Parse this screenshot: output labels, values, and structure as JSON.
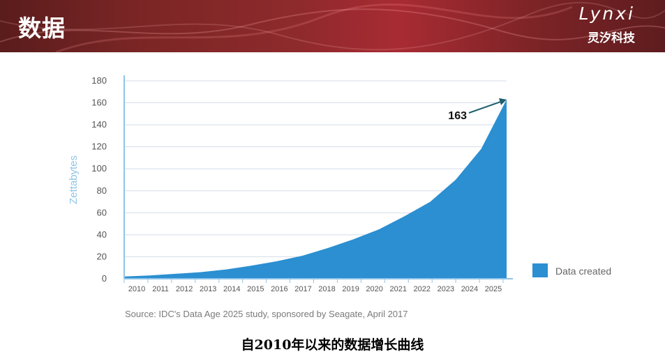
{
  "header": {
    "title": "数据",
    "logo_word": "Lynxi",
    "logo_sub": "灵汐科技"
  },
  "colors": {
    "banner": "#8e2a2c",
    "area_fill": "#2b8fd1",
    "grid": "#d4dee8",
    "axis": "#8fc4e8",
    "ylabel": "#8fc4e8",
    "tick_text": "#555555",
    "source_text": "#7a7a7a"
  },
  "chart_data": {
    "type": "area",
    "x": [
      "2010",
      "2011",
      "2012",
      "2013",
      "2014",
      "2015",
      "2016",
      "2017",
      "2018",
      "2019",
      "2020",
      "2021",
      "2022",
      "2023",
      "2024",
      "2025"
    ],
    "series": [
      {
        "name": "Data created",
        "values": [
          2,
          3,
          4.5,
          6,
          8.5,
          12,
          16,
          21,
          28,
          36,
          45,
          57,
          70,
          90,
          118,
          163
        ]
      }
    ],
    "ylabel": "Zettabytes",
    "xlabel": "",
    "ylim": [
      0,
      180
    ],
    "yticks": [
      0,
      20,
      40,
      60,
      80,
      100,
      120,
      140,
      160,
      180
    ],
    "grid": true,
    "legend": "right",
    "annotation": {
      "text": "163",
      "x": "2025",
      "y": 163
    },
    "source": "Source: IDC's Data Age 2025 study, sponsored by Seagate, April 2017"
  },
  "caption": "自2010年以来的数据增长曲线"
}
